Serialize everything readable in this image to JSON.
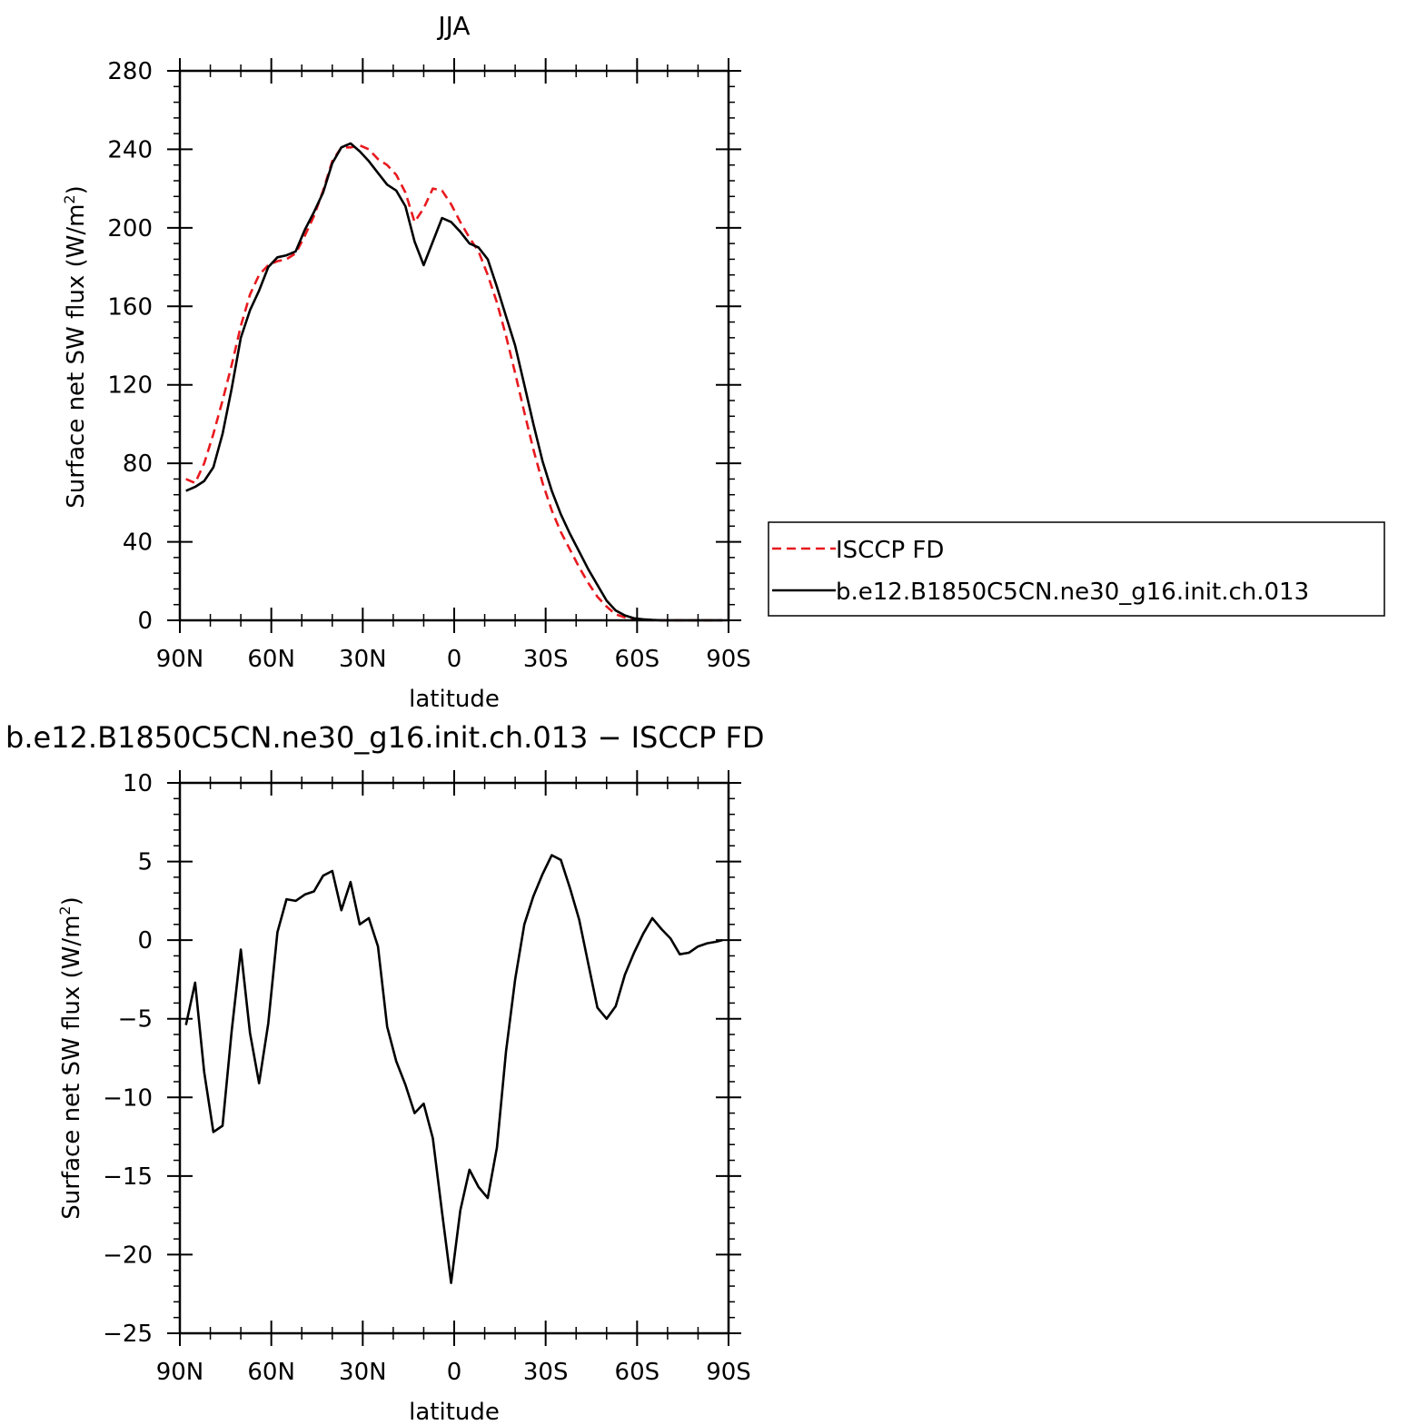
{
  "chart_data": [
    {
      "type": "line",
      "title": "JJA",
      "xlabel": "latitude",
      "ylabel": "Surface net SW flux (W/m",
      "ylabel_sup": "2",
      "ylabel_close": ")",
      "xlim": [
        90,
        -90
      ],
      "ylim": [
        0,
        280
      ],
      "x_ticks": [
        90,
        60,
        30,
        0,
        -30,
        -60,
        -90
      ],
      "x_tick_labels": [
        "90N",
        "60N",
        "30N",
        "0",
        "30S",
        "60S",
        "90S"
      ],
      "y_ticks": [
        0,
        40,
        80,
        120,
        160,
        200,
        240,
        280
      ],
      "y_tick_labels": [
        "0",
        "40",
        "80",
        "120",
        "160",
        "200",
        "240",
        "280"
      ],
      "grid": false,
      "legend_position": "right",
      "x": [
        88,
        85,
        82,
        79,
        76,
        73,
        70,
        67,
        64,
        61,
        58,
        55,
        52,
        49,
        46,
        43,
        40,
        37,
        34,
        31,
        28,
        25,
        22,
        19,
        16,
        13,
        10,
        7,
        4,
        1,
        -2,
        -5,
        -8,
        -11,
        -14,
        -17,
        -20,
        -23,
        -26,
        -29,
        -32,
        -35,
        -38,
        -41,
        -44,
        -47,
        -50,
        -53,
        -56,
        -59,
        -62,
        -65,
        -68,
        -71,
        -74,
        -77,
        -80,
        -83,
        -86,
        -88
      ],
      "series": [
        {
          "name": "ISCCP FD",
          "color": "#e8191e",
          "dash": "dashed",
          "values": [
            72,
            70,
            80,
            95,
            112,
            130,
            150,
            166,
            176,
            181,
            183,
            184,
            187,
            196,
            206,
            219,
            234,
            241,
            241,
            242,
            240,
            235,
            232,
            227,
            218,
            203,
            210,
            220,
            219,
            212,
            203,
            195,
            188,
            176,
            162,
            145,
            126,
            106,
            87,
            70,
            56,
            45,
            36,
            27,
            19,
            12,
            7,
            3,
            1.5,
            0.5,
            0.2,
            0.1,
            0,
            0,
            0,
            0,
            0,
            0,
            0,
            0
          ]
        },
        {
          "name": "b.e12.B1850C5CN.ne30_g16.init.ch.013",
          "color": "#000000",
          "dash": "solid",
          "values": [
            66,
            68,
            71,
            78,
            95,
            118,
            144,
            158,
            168,
            180,
            185,
            186,
            188,
            199,
            208,
            218,
            233,
            241,
            243,
            239,
            234,
            228,
            222,
            219,
            211,
            193,
            181,
            193,
            205,
            203,
            198,
            192,
            190,
            184,
            170,
            155,
            140,
            120,
            100,
            81,
            66,
            54,
            44,
            35,
            26,
            18,
            10,
            5,
            2.5,
            1,
            0.5,
            0.2,
            0,
            0,
            0,
            0,
            0,
            0,
            0,
            0
          ]
        }
      ]
    },
    {
      "type": "line",
      "title": "b.e12.B1850C5CN.ne30_g16.init.ch.013 − ISCCP FD",
      "xlabel": "latitude",
      "ylabel": "Surface net SW flux (W/m",
      "ylabel_sup": "2",
      "ylabel_close": ")",
      "xlim": [
        90,
        -90
      ],
      "ylim": [
        -25,
        10
      ],
      "x_ticks": [
        90,
        60,
        30,
        0,
        -30,
        -60,
        -90
      ],
      "x_tick_labels": [
        "90N",
        "60N",
        "30N",
        "0",
        "30S",
        "60S",
        "90S"
      ],
      "y_ticks": [
        -25,
        -20,
        -15,
        -10,
        -5,
        0,
        5,
        10
      ],
      "y_tick_labels": [
        "−25",
        "−20",
        "−15",
        "−10",
        "−5",
        "0",
        "5",
        "10"
      ],
      "grid": false,
      "x": [
        88,
        85,
        82,
        79,
        76,
        73,
        70,
        67,
        64,
        61,
        58,
        55,
        52,
        49,
        46,
        43,
        40,
        37,
        34,
        31,
        28,
        25,
        22,
        19,
        16,
        13,
        10,
        7,
        4,
        1,
        -2,
        -5,
        -8,
        -11,
        -14,
        -17,
        -20,
        -23,
        -26,
        -29,
        -32,
        -35,
        -38,
        -41,
        -44,
        -47,
        -50,
        -53,
        -56,
        -59,
        -62,
        -65,
        -68,
        -71,
        -74,
        -77,
        -80,
        -83,
        -86,
        -88
      ],
      "series": [
        {
          "name": "",
          "color": "#000000",
          "dash": "solid",
          "values": [
            -5.4,
            -2.7,
            -8.4,
            -12.2,
            -11.8,
            -5.8,
            -0.6,
            -5.9,
            -9.1,
            -5.3,
            0.5,
            2.6,
            2.5,
            2.9,
            3.1,
            4.1,
            4.4,
            1.9,
            3.7,
            1.0,
            1.4,
            -0.4,
            -5.5,
            -7.7,
            -9.2,
            -11.0,
            -10.4,
            -12.6,
            -17.3,
            -21.8,
            -17.2,
            -14.6,
            -15.7,
            -16.4,
            -13.2,
            -7.1,
            -2.5,
            1.0,
            2.8,
            4.2,
            5.4,
            5.1,
            3.3,
            1.3,
            -1.5,
            -4.3,
            -5.0,
            -4.2,
            -2.2,
            -0.8,
            0.4,
            1.4,
            0.7,
            0.1,
            -0.9,
            -0.8,
            -0.4,
            -0.2,
            -0.1,
            0
          ]
        }
      ]
    }
  ]
}
